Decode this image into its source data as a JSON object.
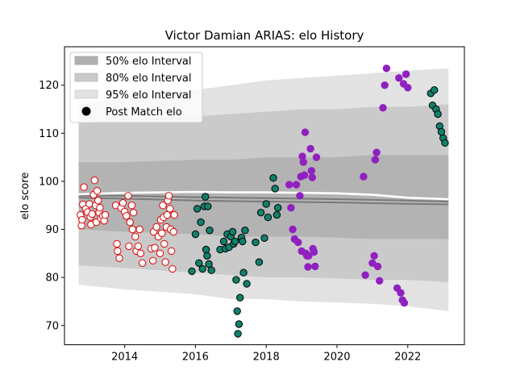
{
  "chart_data": {
    "type": "scatter",
    "title": "Victor Damian ARIAS: elo History",
    "xlabel": "",
    "ylabel": "elo score",
    "xlim": [
      2012.3,
      2023.6
    ],
    "ylim": [
      66,
      128
    ],
    "x_ticks": [
      2014,
      2016,
      2018,
      2020,
      2022
    ],
    "y_ticks": [
      70,
      80,
      90,
      100,
      110,
      120
    ],
    "legend": {
      "placement": "top-left",
      "entries": [
        "50% elo Interval",
        "80% elo Interval",
        "95% elo Interval",
        "Post Match elo"
      ]
    },
    "bands": {
      "x": [
        2012.7,
        2014,
        2016,
        2017,
        2018,
        2019,
        2020,
        2021,
        2022,
        2023.15
      ],
      "p95_lower": [
        78.5,
        77.5,
        76.5,
        75.5,
        75.5,
        75.0,
        74.8,
        74.5,
        74.0,
        73.0
      ],
      "p80_lower": [
        82.5,
        82.0,
        81.0,
        80.5,
        80.0,
        80.0,
        79.8,
        79.5,
        79.5,
        79.0
      ],
      "p50_lower": [
        90.0,
        89.5,
        89.0,
        88.5,
        88.5,
        88.5,
        88.3,
        88.0,
        88.0,
        88.0
      ],
      "p50_upper": [
        104.0,
        104.0,
        104.5,
        104.5,
        105.0,
        105.0,
        105.0,
        105.5,
        105.5,
        105.5
      ],
      "p80_upper": [
        112.0,
        113.0,
        113.5,
        114.0,
        114.5,
        115.0,
        115.0,
        115.5,
        115.5,
        116.0
      ],
      "p95_upper": [
        116.0,
        117.5,
        119.0,
        120.0,
        121.0,
        121.5,
        122.0,
        122.5,
        123.0,
        123.5
      ]
    },
    "mean_line": {
      "x": [
        2012.7,
        2014,
        2016,
        2017,
        2018,
        2019,
        2020,
        2021,
        2022,
        2023.15
      ],
      "y": [
        97.3,
        97.6,
        97.8,
        97.7,
        97.7,
        97.6,
        97.5,
        97.2,
        96.6,
        96.3
      ]
    },
    "median_lines": [
      {
        "x": [
          2012.7,
          2014,
          2016,
          2018,
          2020,
          2022,
          2023.15
        ],
        "y": [
          97.0,
          97.0,
          96.7,
          96.5,
          96.3,
          96.0,
          95.8
        ]
      },
      {
        "x": [
          2012.7,
          2014,
          2016,
          2018,
          2020,
          2022,
          2023.15
        ],
        "y": [
          96.6,
          96.4,
          96.0,
          95.8,
          95.6,
          95.3,
          95.2
        ]
      }
    ],
    "series": [
      {
        "color": "#ffffff",
        "edge": "#dd0000",
        "points": [
          [
            2012.75,
            93.0
          ],
          [
            2012.78,
            90.8
          ],
          [
            2012.8,
            92.0
          ],
          [
            2012.82,
            95.2
          ],
          [
            2012.85,
            98.8
          ],
          [
            2012.9,
            94.3
          ],
          [
            2012.95,
            93.6
          ],
          [
            2013.0,
            95.3
          ],
          [
            2013.03,
            92.6
          ],
          [
            2013.05,
            91.0
          ],
          [
            2013.08,
            93.2
          ],
          [
            2013.12,
            97.2
          ],
          [
            2013.15,
            100.2
          ],
          [
            2013.18,
            95.0
          ],
          [
            2013.2,
            91.5
          ],
          [
            2013.22,
            98.0
          ],
          [
            2013.25,
            96.0
          ],
          [
            2013.28,
            93.5
          ],
          [
            2013.3,
            94.5
          ],
          [
            2013.33,
            92.3
          ],
          [
            2013.38,
            92.8
          ],
          [
            2013.42,
            91.8
          ],
          [
            2013.45,
            93.0
          ],
          [
            2013.75,
            95.0
          ],
          [
            2013.78,
            87.0
          ],
          [
            2013.8,
            85.5
          ],
          [
            2013.85,
            84.0
          ],
          [
            2013.9,
            94.5
          ],
          [
            2013.95,
            95.5
          ],
          [
            2014.0,
            93.7
          ],
          [
            2014.05,
            92.8
          ],
          [
            2014.1,
            97.0
          ],
          [
            2014.12,
            86.5
          ],
          [
            2014.15,
            91.5
          ],
          [
            2014.2,
            95.0
          ],
          [
            2014.22,
            90.0
          ],
          [
            2014.25,
            93.5
          ],
          [
            2014.3,
            88.5
          ],
          [
            2014.33,
            85.5
          ],
          [
            2014.38,
            86.5
          ],
          [
            2014.42,
            90.0
          ],
          [
            2014.45,
            85.0
          ],
          [
            2014.5,
            83.0
          ],
          [
            2014.75,
            86.0
          ],
          [
            2014.8,
            83.5
          ],
          [
            2014.82,
            89.5
          ],
          [
            2014.85,
            86.2
          ],
          [
            2014.9,
            90.5
          ],
          [
            2014.95,
            88.5
          ],
          [
            2015.0,
            85.0
          ],
          [
            2015.02,
            92.0
          ],
          [
            2015.05,
            89.2
          ],
          [
            2015.08,
            95.0
          ],
          [
            2015.1,
            92.5
          ],
          [
            2015.12,
            87.0
          ],
          [
            2015.15,
            83.2
          ],
          [
            2015.18,
            90.5
          ],
          [
            2015.2,
            93.0
          ],
          [
            2015.22,
            96.0
          ],
          [
            2015.25,
            97.0
          ],
          [
            2015.28,
            94.3
          ],
          [
            2015.3,
            90.0
          ],
          [
            2015.32,
            85.5
          ],
          [
            2015.35,
            81.8
          ],
          [
            2015.38,
            89.5
          ],
          [
            2015.4,
            93.0
          ]
        ]
      },
      {
        "color": "#11806a",
        "edge": "#000000",
        "points": [
          [
            2015.9,
            81.3
          ],
          [
            2016.0,
            89.0
          ],
          [
            2016.05,
            94.3
          ],
          [
            2016.1,
            83.0
          ],
          [
            2016.15,
            91.5
          ],
          [
            2016.2,
            81.8
          ],
          [
            2016.25,
            94.8
          ],
          [
            2016.28,
            96.8
          ],
          [
            2016.3,
            85.8
          ],
          [
            2016.33,
            84.5
          ],
          [
            2016.35,
            94.8
          ],
          [
            2016.38,
            82.8
          ],
          [
            2016.4,
            89.8
          ],
          [
            2016.45,
            81.5
          ],
          [
            2016.7,
            85.8
          ],
          [
            2016.8,
            87.5
          ],
          [
            2016.85,
            86.0
          ],
          [
            2016.9,
            89.0
          ],
          [
            2016.95,
            86.3
          ],
          [
            2017.0,
            88.5
          ],
          [
            2017.05,
            89.5
          ],
          [
            2017.08,
            87.0
          ],
          [
            2017.12,
            87.5
          ],
          [
            2017.15,
            79.5
          ],
          [
            2017.18,
            73.0
          ],
          [
            2017.2,
            68.3
          ],
          [
            2017.23,
            70.3
          ],
          [
            2017.26,
            75.8
          ],
          [
            2017.3,
            88.3
          ],
          [
            2017.33,
            87.5
          ],
          [
            2017.36,
            81.0
          ],
          [
            2017.4,
            89.8
          ],
          [
            2017.45,
            78.7
          ],
          [
            2017.7,
            87.3
          ],
          [
            2017.8,
            83.2
          ],
          [
            2017.85,
            93.5
          ],
          [
            2017.95,
            88.2
          ],
          [
            2018.0,
            95.3
          ],
          [
            2018.05,
            92.5
          ],
          [
            2018.2,
            100.7
          ],
          [
            2018.25,
            98.5
          ],
          [
            2018.3,
            93.0
          ],
          [
            2018.33,
            94.5
          ]
        ]
      },
      {
        "color": "#9020c0",
        "edge": "#9020c0",
        "points": [
          [
            2018.65,
            99.3
          ],
          [
            2018.7,
            94.5
          ],
          [
            2018.75,
            90.0
          ],
          [
            2018.8,
            88.0
          ],
          [
            2018.85,
            99.3
          ],
          [
            2018.9,
            87.3
          ],
          [
            2018.95,
            97.0
          ],
          [
            2018.98,
            101.0
          ],
          [
            2019.0,
            85.5
          ],
          [
            2019.02,
            105.2
          ],
          [
            2019.05,
            104.0
          ],
          [
            2019.08,
            101.3
          ],
          [
            2019.1,
            110.2
          ],
          [
            2019.12,
            85.0
          ],
          [
            2019.15,
            84.5
          ],
          [
            2019.18,
            82.2
          ],
          [
            2019.2,
            84.5
          ],
          [
            2019.25,
            106.8
          ],
          [
            2019.28,
            102.2
          ],
          [
            2019.3,
            100.8
          ],
          [
            2019.32,
            86.0
          ],
          [
            2019.35,
            85.3
          ],
          [
            2019.38,
            82.3
          ],
          [
            2019.42,
            105.0
          ],
          [
            2020.75,
            101.0
          ],
          [
            2020.8,
            80.5
          ],
          [
            2021.0,
            83.0
          ],
          [
            2021.05,
            84.5
          ],
          [
            2021.08,
            104.5
          ],
          [
            2021.12,
            106.0
          ],
          [
            2021.15,
            82.3
          ],
          [
            2021.2,
            79.3
          ],
          [
            2021.3,
            115.3
          ],
          [
            2021.35,
            120.0
          ],
          [
            2021.4,
            123.5
          ],
          [
            2021.7,
            77.8
          ],
          [
            2021.75,
            121.5
          ],
          [
            2021.8,
            76.8
          ],
          [
            2021.85,
            75.3
          ],
          [
            2021.88,
            120.3
          ],
          [
            2021.9,
            74.7
          ],
          [
            2021.95,
            122.3
          ],
          [
            2022.0,
            119.5
          ]
        ]
      },
      {
        "color": "#11806a",
        "edge": "#000000",
        "points": [
          [
            2022.65,
            118.3
          ],
          [
            2022.7,
            115.8
          ],
          [
            2022.75,
            119.0
          ],
          [
            2022.8,
            115.0
          ],
          [
            2022.85,
            114.0
          ],
          [
            2022.9,
            111.5
          ],
          [
            2022.95,
            110.3
          ],
          [
            2023.0,
            109.0
          ],
          [
            2023.05,
            108.0
          ]
        ]
      }
    ]
  }
}
